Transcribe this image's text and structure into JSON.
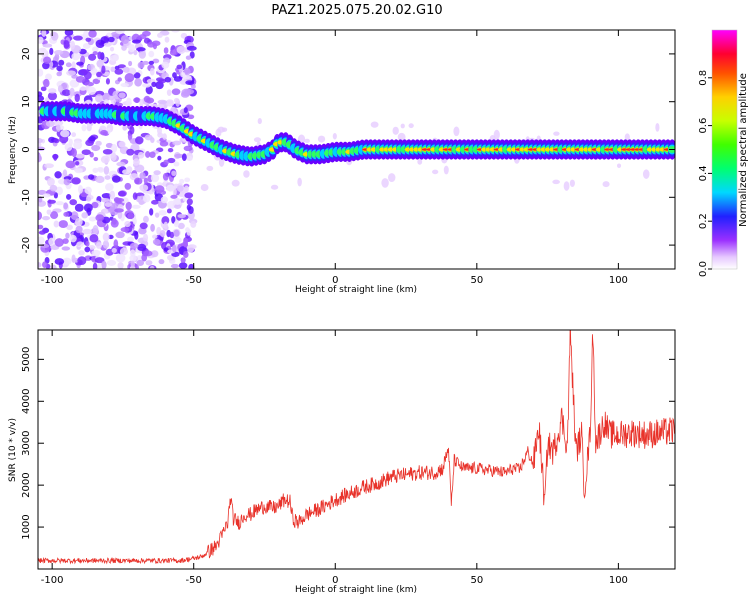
{
  "title": "PAZ1.2025.075.20.02.G10",
  "colorbar": {
    "label": "Normalized spectral amplitude",
    "ticks": [
      "0.0",
      "0.2",
      "0.4",
      "0.6",
      "0.8"
    ],
    "tick_values": [
      0.0,
      0.2,
      0.4,
      0.6,
      0.8
    ]
  },
  "chart_data": [
    {
      "type": "heatmap",
      "xlabel": "Height of straight line (km)",
      "ylabel": "Frequency (Hz)",
      "xlim": [
        -105,
        120
      ],
      "ylim": [
        -25,
        25
      ],
      "xticks": [
        -100,
        -50,
        0,
        50,
        100
      ],
      "xtick_labels": [
        "-100",
        "-50",
        "0",
        "50",
        "100"
      ],
      "yticks": [
        20,
        10,
        0,
        -10,
        -20
      ],
      "ytick_labels": [
        "20",
        "10",
        "0",
        "-10",
        "-20"
      ],
      "color_scale": "rainbow (0 = white/violet, 1 = magenta/red)",
      "ridge": {
        "x": [
          -103,
          -95,
          -90,
          -85,
          -80,
          -75,
          -70,
          -65,
          -60,
          -55,
          -50,
          -45,
          -40,
          -35,
          -30,
          -25,
          -22,
          -20,
          -17,
          -14,
          -10,
          -5,
          0,
          5,
          10,
          15,
          20,
          25,
          30,
          35,
          40,
          45,
          50,
          55,
          60,
          65,
          70,
          75,
          80,
          85,
          90,
          95,
          100,
          105,
          110,
          115,
          120
        ],
        "y": [
          8,
          8,
          7.5,
          7.5,
          7.5,
          7,
          7,
          7,
          6.5,
          5,
          3,
          1.5,
          0,
          -1,
          -1.5,
          -1,
          0,
          1.5,
          1.5,
          0,
          -1,
          -1,
          -0.5,
          -0.5,
          0,
          0,
          0,
          0,
          0,
          0,
          0,
          0,
          0,
          0,
          0,
          0,
          0,
          0,
          0,
          0,
          0,
          0,
          0,
          0,
          0,
          0,
          0
        ]
      },
      "noise_region_x": [
        -105,
        -50
      ]
    },
    {
      "type": "line",
      "xlabel": "Height of straight line (km)",
      "ylabel": "SNR (10 * v/v)",
      "xlim": [
        -105,
        120
      ],
      "ylim": [
        0,
        5700
      ],
      "xticks": [
        -100,
        -50,
        0,
        50,
        100
      ],
      "xtick_labels": [
        "-100",
        "-50",
        "0",
        "50",
        "100"
      ],
      "yticks": [
        1000,
        2000,
        3000,
        4000,
        5000
      ],
      "ytick_labels": [
        "1000",
        "2000",
        "3000",
        "4000",
        "5000"
      ],
      "series": [
        {
          "color": "#e8322a",
          "x": [
            -105,
            -95,
            -85,
            -75,
            -65,
            -55,
            -50,
            -47,
            -45,
            -42,
            -40,
            -38,
            -37,
            -36,
            -34,
            -32,
            -30,
            -28,
            -25,
            -22,
            -20,
            -18,
            -16,
            -15,
            -13,
            -10,
            -5,
            0,
            5,
            10,
            15,
            20,
            25,
            30,
            35,
            38,
            40,
            41,
            42,
            45,
            50,
            55,
            60,
            63,
            65,
            68,
            70,
            72,
            74,
            75,
            77,
            80,
            82,
            83,
            85,
            87,
            88,
            90,
            91,
            92,
            95,
            97,
            100,
            105,
            110,
            115,
            120
          ],
          "y": [
            200,
            200,
            200,
            200,
            200,
            200,
            250,
            300,
            400,
            550,
            800,
            1100,
            1700,
            1200,
            1100,
            1300,
            1300,
            1400,
            1500,
            1450,
            1500,
            1650,
            1600,
            1200,
            1100,
            1300,
            1450,
            1650,
            1800,
            1950,
            2050,
            2200,
            2250,
            2300,
            2300,
            2400,
            2900,
            1500,
            2600,
            2400,
            2400,
            2350,
            2300,
            2400,
            2350,
            2800,
            2500,
            3400,
            1500,
            3000,
            2800,
            3600,
            2900,
            5700,
            2800,
            3200,
            1900,
            3200,
            5700,
            3000,
            3500,
            3200,
            3200,
            3250,
            3200,
            3250,
            3300
          ]
        }
      ]
    }
  ]
}
